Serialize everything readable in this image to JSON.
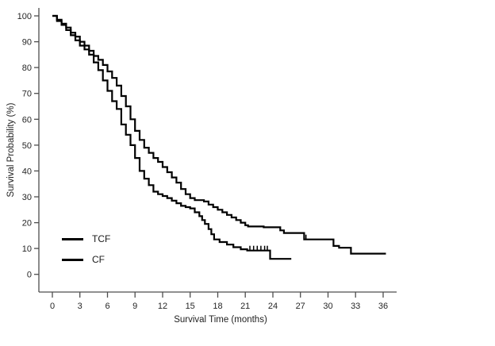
{
  "page": {
    "background": "#ffffff"
  },
  "chart_data": {
    "type": "line",
    "subtype": "kaplan-meier-step-curve",
    "title": "",
    "xlabel": "Survival Time (months)",
    "ylabel": "Survival Probability (%)",
    "xlim": [
      0,
      37.5
    ],
    "ylim": [
      0,
      102
    ],
    "x_ticks": [
      0,
      3,
      6,
      9,
      12,
      15,
      18,
      21,
      24,
      27,
      30,
      33,
      36
    ],
    "y_ticks": [
      0,
      10,
      20,
      30,
      40,
      50,
      60,
      70,
      80,
      90,
      100
    ],
    "grid": false,
    "legend": {
      "position": "inside-lower-left",
      "entries": [
        "TCF",
        "CF"
      ]
    },
    "line_color": "#000000",
    "axis_color": "#4d4d4d",
    "series": [
      {
        "name": "TCF",
        "end_time": 36.3,
        "censor_marks": [
          [
            27.6,
            13.5
          ]
        ],
        "points": [
          [
            0,
            100
          ],
          [
            0.5,
            98.5
          ],
          [
            1,
            97
          ],
          [
            1.5,
            95.5
          ],
          [
            2,
            93.5
          ],
          [
            2.5,
            92
          ],
          [
            3,
            90
          ],
          [
            3.5,
            88.5
          ],
          [
            4,
            86.5
          ],
          [
            4.5,
            84.5
          ],
          [
            5,
            83
          ],
          [
            5.5,
            81
          ],
          [
            6,
            78.5
          ],
          [
            6.5,
            76
          ],
          [
            7,
            73
          ],
          [
            7.5,
            69
          ],
          [
            8,
            65
          ],
          [
            8.5,
            60
          ],
          [
            9,
            55.5
          ],
          [
            9.5,
            52
          ],
          [
            10,
            49
          ],
          [
            10.5,
            47
          ],
          [
            11,
            45
          ],
          [
            11.5,
            43.5
          ],
          [
            12,
            41.5
          ],
          [
            12.5,
            39.5
          ],
          [
            13,
            37.5
          ],
          [
            13.5,
            35.5
          ],
          [
            14,
            33
          ],
          [
            14.5,
            31
          ],
          [
            15,
            29.5
          ],
          [
            15.5,
            28.7
          ],
          [
            16.5,
            28.2
          ],
          [
            17,
            27
          ],
          [
            17.5,
            26
          ],
          [
            18,
            25
          ],
          [
            18.5,
            24
          ],
          [
            19,
            23
          ],
          [
            19.5,
            22
          ],
          [
            20,
            21
          ],
          [
            20.5,
            20
          ],
          [
            21,
            19
          ],
          [
            21.3,
            18.5
          ],
          [
            23,
            18.2
          ],
          [
            24.8,
            17
          ],
          [
            25.2,
            16
          ],
          [
            27.4,
            13.5
          ],
          [
            30.6,
            11
          ],
          [
            31.2,
            10.3
          ],
          [
            32.5,
            8
          ]
        ]
      },
      {
        "name": "CF",
        "end_time": 26.0,
        "censor_marks": [
          [
            21.5,
            9.2
          ],
          [
            21.9,
            9.2
          ],
          [
            22.3,
            9.2
          ],
          [
            22.7,
            9.2
          ],
          [
            23.1,
            9.2
          ],
          [
            23.4,
            9.2
          ]
        ],
        "points": [
          [
            0,
            100
          ],
          [
            0.5,
            98
          ],
          [
            1,
            96.5
          ],
          [
            1.5,
            94.5
          ],
          [
            2,
            92.5
          ],
          [
            2.5,
            90.5
          ],
          [
            3,
            88.5
          ],
          [
            3.5,
            87
          ],
          [
            4,
            85
          ],
          [
            4.5,
            82
          ],
          [
            5,
            79
          ],
          [
            5.5,
            75
          ],
          [
            6,
            71
          ],
          [
            6.5,
            67
          ],
          [
            7,
            64
          ],
          [
            7.5,
            58
          ],
          [
            8,
            54
          ],
          [
            8.5,
            50
          ],
          [
            9,
            45
          ],
          [
            9.5,
            40
          ],
          [
            10,
            37
          ],
          [
            10.5,
            34.5
          ],
          [
            11,
            32
          ],
          [
            11.5,
            31
          ],
          [
            12,
            30.3
          ],
          [
            12.5,
            29.5
          ],
          [
            13,
            28.5
          ],
          [
            13.5,
            27.5
          ],
          [
            14,
            26.5
          ],
          [
            14.5,
            26
          ],
          [
            15,
            25.5
          ],
          [
            15.5,
            24
          ],
          [
            16,
            22.5
          ],
          [
            16.3,
            21
          ],
          [
            16.6,
            19.5
          ],
          [
            17,
            17.5
          ],
          [
            17.3,
            15.5
          ],
          [
            17.6,
            13.5
          ],
          [
            18.2,
            12.5
          ],
          [
            19,
            11.5
          ],
          [
            19.7,
            10.5
          ],
          [
            20.5,
            9.7
          ],
          [
            21.2,
            9.2
          ],
          [
            23.7,
            6
          ]
        ]
      }
    ]
  }
}
